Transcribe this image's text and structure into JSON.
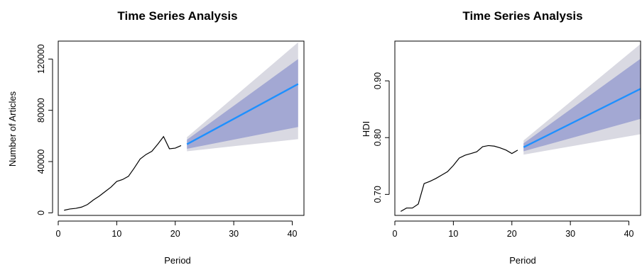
{
  "chart_data": [
    {
      "type": "line",
      "title": "Time Series Analysis",
      "xlabel": "Period",
      "ylabel": "Number of Articles",
      "xlim": [
        0,
        42
      ],
      "ylim": [
        -2000,
        134000
      ],
      "x_ticks": [
        0,
        10,
        20,
        30,
        40
      ],
      "x_tick_labels": [
        "0",
        "10",
        "20",
        "30",
        "40"
      ],
      "y_ticks": [
        0,
        40000,
        80000,
        120000
      ],
      "y_tick_labels": [
        "0",
        "40000",
        "80000",
        "120000"
      ],
      "grid": false,
      "colors": {
        "observed": "#000000",
        "forecast": "#1e90ff",
        "band_80": "#a3a8d3",
        "band_95": "#d9d9e2"
      },
      "series": [
        {
          "role": "observed",
          "x": [
            1,
            2,
            3,
            4,
            5,
            6,
            7,
            8,
            9,
            10,
            11,
            12,
            13,
            14,
            15,
            16,
            17,
            18,
            19,
            20,
            21
          ],
          "y": [
            2000,
            3000,
            3500,
            4500,
            6500,
            10000,
            13000,
            16500,
            20000,
            24500,
            26000,
            28500,
            35000,
            42000,
            45500,
            48000,
            53500,
            59500,
            50000,
            50500,
            52500
          ]
        },
        {
          "role": "forecast",
          "x": [
            22,
            41
          ],
          "y": [
            53500,
            100500
          ],
          "lo80": [
            50000,
            67000
          ],
          "hi80": [
            57000,
            120000
          ],
          "lo95": [
            48000,
            57500
          ],
          "hi95": [
            59000,
            133000
          ]
        }
      ]
    },
    {
      "type": "line",
      "title": "Time Series Analysis",
      "xlabel": "Period",
      "ylabel": "HDI",
      "xlim": [
        0,
        42
      ],
      "ylim": [
        0.663,
        0.97
      ],
      "x_ticks": [
        0,
        10,
        20,
        30,
        40
      ],
      "x_tick_labels": [
        "0",
        "10",
        "20",
        "30",
        "40"
      ],
      "y_ticks": [
        0.7,
        0.8,
        0.9
      ],
      "y_tick_labels": [
        "0.70",
        "0.80",
        "0.90"
      ],
      "grid": false,
      "colors": {
        "observed": "#000000",
        "forecast": "#1e90ff",
        "band_80": "#a3a8d3",
        "band_95": "#d9d9e2"
      },
      "series": [
        {
          "role": "observed",
          "x": [
            1,
            2,
            3,
            4,
            5,
            6,
            7,
            8,
            9,
            10,
            11,
            12,
            13,
            14,
            15,
            16,
            17,
            18,
            19,
            20,
            21
          ],
          "y": [
            0.67,
            0.676,
            0.676,
            0.683,
            0.719,
            0.723,
            0.728,
            0.734,
            0.74,
            0.751,
            0.764,
            0.769,
            0.772,
            0.775,
            0.784,
            0.786,
            0.785,
            0.782,
            0.778,
            0.772,
            0.778
          ]
        },
        {
          "role": "forecast",
          "x": [
            22,
            42
          ],
          "y": [
            0.783,
            0.886
          ],
          "lo80": [
            0.776,
            0.833
          ],
          "hi80": [
            0.79,
            0.939
          ],
          "lo95": [
            0.77,
            0.806
          ],
          "hi95": [
            0.795,
            0.965
          ]
        }
      ]
    }
  ]
}
